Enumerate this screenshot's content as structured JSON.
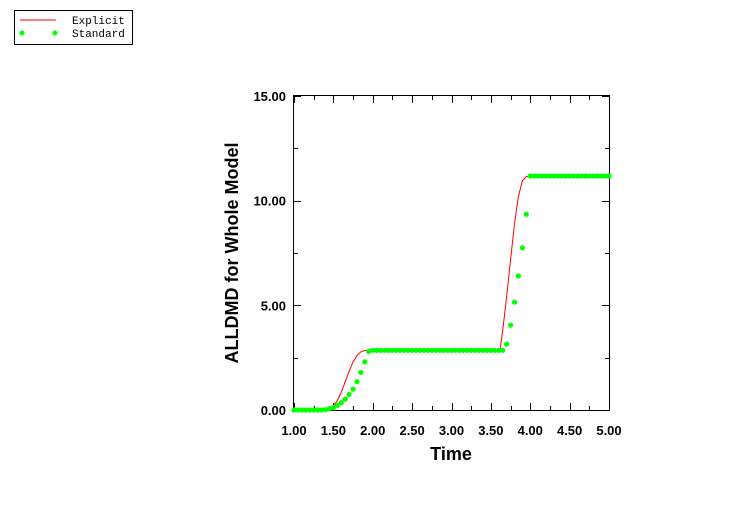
{
  "chart_data": {
    "type": "line",
    "title": "",
    "xlabel": "Time",
    "ylabel": "ALLDMD for Whole Model",
    "xlim": [
      1.0,
      5.0
    ],
    "ylim": [
      0.0,
      15.0
    ],
    "x_ticks": [
      "1.00",
      "1.50",
      "2.00",
      "2.50",
      "3.00",
      "3.50",
      "4.00",
      "4.50",
      "5.00"
    ],
    "y_ticks": [
      "0.00",
      "5.00",
      "10.00",
      "15.00"
    ],
    "grid": false,
    "legend_position": "top-left",
    "series": [
      {
        "name": "Explicit",
        "style": "line",
        "color": "#ff0000",
        "x": [
          1.0,
          1.3,
          1.4,
          1.5,
          1.55,
          1.6,
          1.65,
          1.7,
          1.75,
          1.8,
          1.85,
          1.9,
          1.95,
          2.0,
          2.5,
          3.0,
          3.5,
          3.6,
          3.62,
          3.65,
          3.7,
          3.75,
          3.8,
          3.85,
          3.9,
          3.95,
          4.0,
          4.5,
          5.0
        ],
        "y": [
          0.0,
          0.0,
          0.05,
          0.2,
          0.45,
          0.85,
          1.35,
          1.85,
          2.3,
          2.6,
          2.78,
          2.84,
          2.85,
          2.85,
          2.85,
          2.85,
          2.85,
          2.85,
          2.95,
          3.8,
          5.4,
          7.2,
          8.9,
          10.2,
          10.95,
          11.15,
          11.18,
          11.18,
          11.18
        ]
      },
      {
        "name": "Standard",
        "style": "markers",
        "color": "#00ff00",
        "x": [
          1.0,
          1.05,
          1.1,
          1.15,
          1.2,
          1.25,
          1.3,
          1.35,
          1.4,
          1.45,
          1.5,
          1.55,
          1.6,
          1.65,
          1.7,
          1.75,
          1.8,
          1.85,
          1.9,
          1.95,
          2.0,
          2.05,
          2.1,
          2.15,
          2.2,
          2.25,
          2.3,
          2.35,
          2.4,
          2.45,
          2.5,
          2.55,
          2.6,
          2.65,
          2.7,
          2.75,
          2.8,
          2.85,
          2.9,
          2.95,
          3.0,
          3.05,
          3.1,
          3.15,
          3.2,
          3.25,
          3.3,
          3.35,
          3.4,
          3.45,
          3.5,
          3.55,
          3.6,
          3.65,
          3.7,
          3.75,
          3.8,
          3.85,
          3.9,
          3.95,
          4.0,
          4.05,
          4.1,
          4.15,
          4.2,
          4.25,
          4.3,
          4.35,
          4.4,
          4.45,
          4.5,
          4.55,
          4.6,
          4.65,
          4.7,
          4.75,
          4.8,
          4.85,
          4.9,
          4.95,
          5.0
        ],
        "y": [
          0.0,
          0.0,
          0.0,
          0.0,
          0.0,
          0.0,
          0.0,
          0.0,
          0.02,
          0.06,
          0.12,
          0.22,
          0.35,
          0.52,
          0.74,
          1.0,
          1.35,
          1.8,
          2.3,
          2.8,
          2.85,
          2.85,
          2.85,
          2.85,
          2.85,
          2.85,
          2.85,
          2.85,
          2.85,
          2.85,
          2.85,
          2.85,
          2.85,
          2.85,
          2.85,
          2.85,
          2.85,
          2.85,
          2.85,
          2.85,
          2.85,
          2.85,
          2.85,
          2.85,
          2.85,
          2.85,
          2.85,
          2.85,
          2.85,
          2.85,
          2.85,
          2.85,
          2.85,
          2.85,
          3.15,
          4.05,
          5.15,
          6.4,
          7.75,
          9.35,
          11.18,
          11.18,
          11.18,
          11.18,
          11.18,
          11.18,
          11.18,
          11.18,
          11.18,
          11.18,
          11.18,
          11.18,
          11.18,
          11.18,
          11.18,
          11.18,
          11.18,
          11.18,
          11.18,
          11.18,
          11.18
        ]
      }
    ]
  },
  "legend": {
    "items": [
      {
        "label": "Explicit",
        "symbol": "line",
        "color": "#ff0000"
      },
      {
        "label": "Standard",
        "symbol": "dots",
        "color": "#00ff00"
      }
    ]
  }
}
